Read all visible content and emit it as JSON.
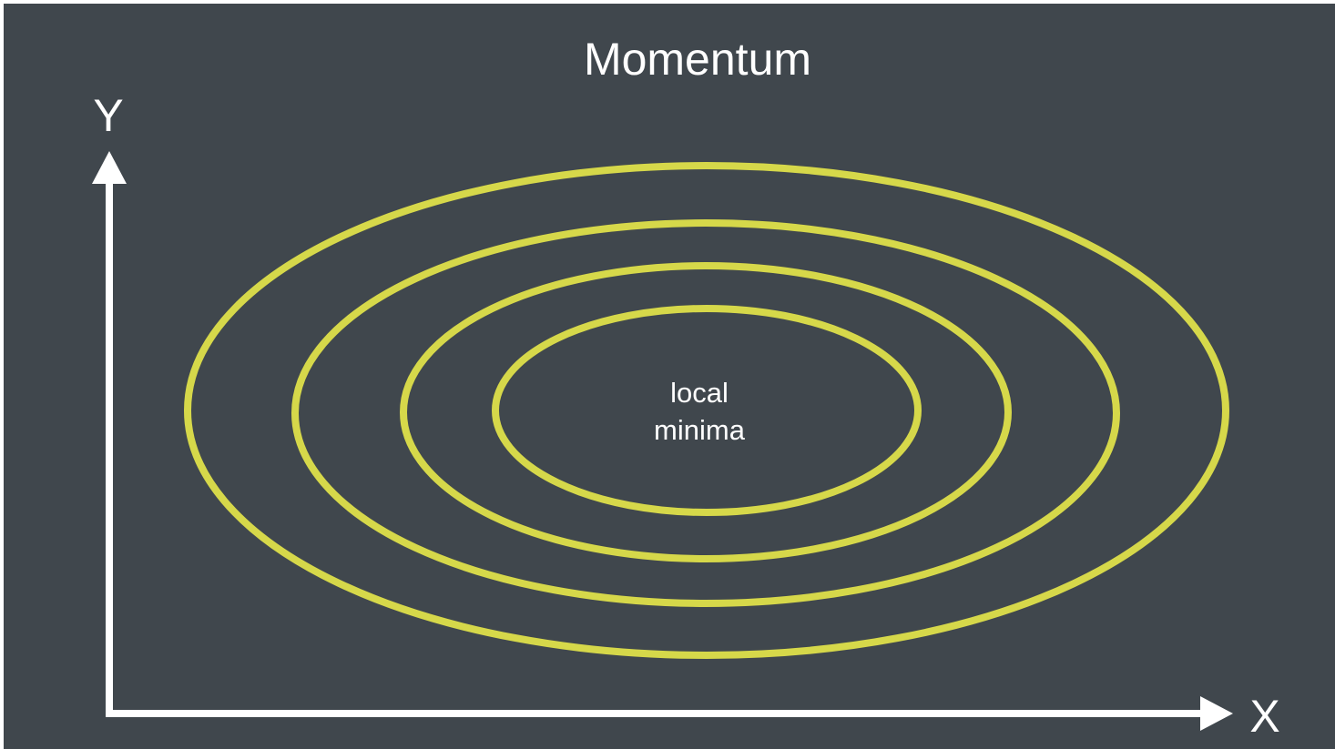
{
  "title": "Momentum",
  "axes": {
    "x_label": "X",
    "y_label": "Y"
  },
  "center_label": {
    "line1": "local",
    "line2": "minima"
  },
  "contour_count": 4,
  "colors": {
    "background": "#40474d",
    "contour": "#d6d84a",
    "axis": "#ffffff",
    "text": "#ffffff",
    "frame": "#ffffff"
  }
}
